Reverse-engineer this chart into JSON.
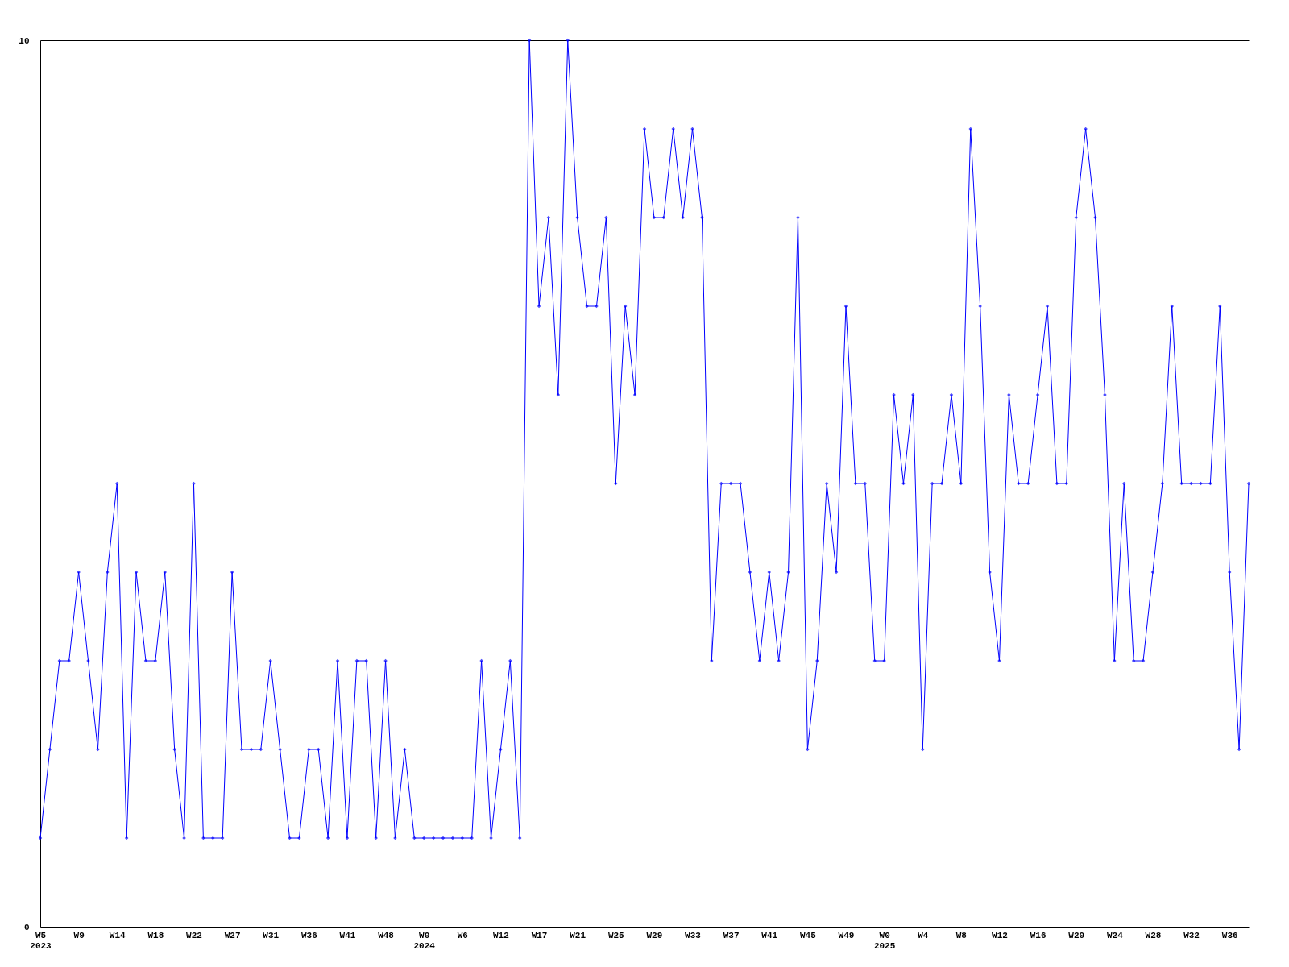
{
  "chart_data": {
    "type": "line",
    "categories": [
      "W5\n2023",
      null,
      null,
      null,
      "W9",
      null,
      null,
      null,
      "W14",
      null,
      null,
      null,
      "W18",
      null,
      null,
      null,
      "W22",
      null,
      null,
      null,
      "W27",
      null,
      null,
      null,
      "W31",
      null,
      null,
      null,
      "W36",
      null,
      null,
      null,
      "W41",
      null,
      null,
      null,
      "W48",
      null,
      null,
      null,
      "W0\n2024",
      null,
      null,
      null,
      "W6",
      null,
      null,
      null,
      "W12",
      null,
      null,
      null,
      "W17",
      null,
      null,
      null,
      "W21",
      null,
      null,
      null,
      "W25",
      null,
      null,
      null,
      "W29",
      null,
      null,
      null,
      "W33",
      null,
      null,
      null,
      "W37",
      null,
      null,
      null,
      "W41",
      null,
      null,
      null,
      "W45",
      null,
      null,
      null,
      "W49",
      null,
      null,
      null,
      "W0\n2025",
      null,
      null,
      null,
      "W4",
      null,
      null,
      null,
      "W8",
      null,
      null,
      null,
      "W12",
      null,
      null,
      null,
      "W16",
      null,
      null,
      null,
      "W20",
      null,
      null,
      null,
      "W24",
      null,
      null,
      null,
      "W28",
      null,
      null,
      null,
      "W32",
      null,
      null,
      null,
      "W36",
      null,
      null
    ],
    "series": [
      {
        "color": "#0000ff",
        "values": [
          1,
          2,
          3,
          3,
          4,
          3,
          2,
          4,
          5,
          1,
          4,
          3,
          3,
          4,
          2,
          1,
          5,
          1,
          1,
          1,
          4,
          2,
          2,
          2,
          3,
          2,
          1,
          1,
          2,
          2,
          1,
          3,
          1,
          3,
          3,
          1,
          3,
          1,
          2,
          1,
          1,
          1,
          1,
          1,
          1,
          1,
          3,
          1,
          2,
          3,
          1,
          10,
          7,
          8,
          6,
          10,
          8,
          7,
          7,
          8,
          5,
          7,
          6,
          9,
          8,
          8,
          9,
          8,
          9,
          8,
          3,
          5,
          5,
          5,
          4,
          3,
          4,
          3,
          4,
          8,
          2,
          3,
          5,
          4,
          7,
          5,
          5,
          3,
          3,
          6,
          5,
          6,
          2,
          5,
          5,
          6,
          5,
          9,
          7,
          4,
          3,
          6,
          5,
          5,
          6,
          7,
          5,
          5,
          8,
          9,
          8,
          6,
          3,
          5,
          3,
          3,
          4,
          5,
          7,
          5,
          5,
          5,
          5,
          7,
          4,
          2,
          5
        ]
      }
    ],
    "ylim": [
      0,
      10
    ],
    "yticks": [
      0,
      10
    ],
    "marker": "diamond",
    "line_style": "solid",
    "legend": false
  }
}
